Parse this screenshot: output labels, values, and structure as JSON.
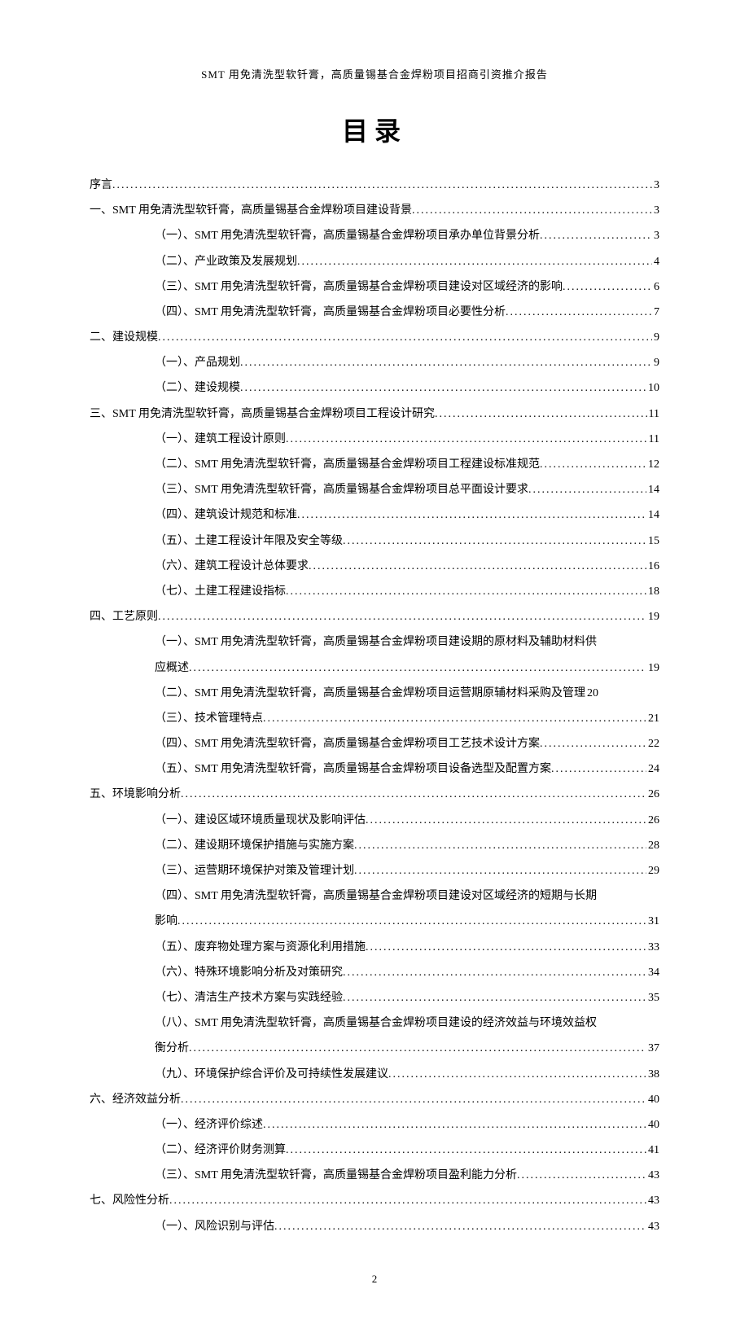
{
  "header": "SMT 用免清洗型软钎膏，高质量锡基合金焊粉项目招商引资推介报告",
  "title": "目录",
  "pageNumber": "2",
  "toc": [
    {
      "level": 1,
      "text": "序言",
      "page": "3"
    },
    {
      "level": 1,
      "text": "一、SMT 用免清洗型软钎膏，高质量锡基合金焊粉项目建设背景",
      "page": "3"
    },
    {
      "level": 2,
      "text": "（一）、SMT 用免清洗型软钎膏，高质量锡基合金焊粉项目承办单位背景分析",
      "page": "3"
    },
    {
      "level": 2,
      "text": "（二）、产业政策及发展规划",
      "page": "4"
    },
    {
      "level": 2,
      "text": "（三）、SMT 用免清洗型软钎膏，高质量锡基合金焊粉项目建设对区域经济的影响",
      "page": "6"
    },
    {
      "level": 2,
      "text": "（四）、SMT 用免清洗型软钎膏，高质量锡基合金焊粉项目必要性分析",
      "page": "7"
    },
    {
      "level": 1,
      "text": "二、建设规模",
      "page": "9"
    },
    {
      "level": 2,
      "text": "（一）、产品规划",
      "page": "9"
    },
    {
      "level": 2,
      "text": "（二）、建设规模",
      "page": "10"
    },
    {
      "level": 1,
      "text": "三、SMT 用免清洗型软钎膏，高质量锡基合金焊粉项目工程设计研究",
      "page": "11"
    },
    {
      "level": 2,
      "text": "（一）、建筑工程设计原则",
      "page": "11"
    },
    {
      "level": 2,
      "text": "（二）、SMT 用免清洗型软钎膏，高质量锡基合金焊粉项目工程建设标准规范",
      "page": "12"
    },
    {
      "level": 2,
      "text": "（三）、SMT 用免清洗型软钎膏，高质量锡基合金焊粉项目总平面设计要求",
      "page": "14"
    },
    {
      "level": 2,
      "text": "（四）、建筑设计规范和标准",
      "page": "14"
    },
    {
      "level": 2,
      "text": "（五）、土建工程设计年限及安全等级",
      "page": "15"
    },
    {
      "level": 2,
      "text": "（六）、建筑工程设计总体要求",
      "page": "16"
    },
    {
      "level": 2,
      "text": "（七）、土建工程建设指标",
      "page": "18"
    },
    {
      "level": 1,
      "text": "四、工艺原则",
      "page": "19"
    },
    {
      "level": 2,
      "wrap": true,
      "text1": "（一）、SMT 用免清洗型软钎膏，高质量锡基合金焊粉项目建设期的原材料及辅助材料供",
      "text2": "应概述",
      "page": "19"
    },
    {
      "level": 2,
      "text": "（二）、SMT 用免清洗型软钎膏，高质量锡基合金焊粉项目运营期原辅材料采购及管理",
      "page": "20",
      "tight": true
    },
    {
      "level": 2,
      "text": "（三）、技术管理特点",
      "page": "21"
    },
    {
      "level": 2,
      "text": "（四）、SMT 用免清洗型软钎膏，高质量锡基合金焊粉项目工艺技术设计方案",
      "page": "22"
    },
    {
      "level": 2,
      "text": "（五）、SMT 用免清洗型软钎膏，高质量锡基合金焊粉项目设备选型及配置方案",
      "page": "24"
    },
    {
      "level": 1,
      "text": "五、环境影响分析",
      "page": "26"
    },
    {
      "level": 2,
      "text": "（一）、建设区域环境质量现状及影响评估",
      "page": "26"
    },
    {
      "level": 2,
      "text": "（二）、建设期环境保护措施与实施方案",
      "page": "28"
    },
    {
      "level": 2,
      "text": "（三）、运营期环境保护对策及管理计划",
      "page": "29"
    },
    {
      "level": 2,
      "wrap": true,
      "text1": "（四）、SMT 用免清洗型软钎膏，高质量锡基合金焊粉项目建设对区域经济的短期与长期",
      "text2": "影响",
      "page": "31"
    },
    {
      "level": 2,
      "text": "（五）、废弃物处理方案与资源化利用措施",
      "page": "33"
    },
    {
      "level": 2,
      "text": "（六）、特殊环境影响分析及对策研究",
      "page": "34"
    },
    {
      "level": 2,
      "text": "（七）、清洁生产技术方案与实践经验",
      "page": "35"
    },
    {
      "level": 2,
      "wrap": true,
      "text1": "（八）、SMT 用免清洗型软钎膏，高质量锡基合金焊粉项目建设的经济效益与环境效益权",
      "text2": "衡分析",
      "page": "37"
    },
    {
      "level": 2,
      "text": "（九）、环境保护综合评价及可持续性发展建议",
      "page": "38"
    },
    {
      "level": 1,
      "text": "六、经济效益分析",
      "page": "40"
    },
    {
      "level": 2,
      "text": "（一）、经济评价综述",
      "page": "40"
    },
    {
      "level": 2,
      "text": "（二）、经济评价财务测算",
      "page": "41"
    },
    {
      "level": 2,
      "text": "（三）、SMT 用免清洗型软钎膏，高质量锡基合金焊粉项目盈利能力分析",
      "page": "43"
    },
    {
      "level": 1,
      "text": "七、风险性分析",
      "page": "43"
    },
    {
      "level": 2,
      "text": "（一）、风险识别与评估",
      "page": "43"
    }
  ]
}
